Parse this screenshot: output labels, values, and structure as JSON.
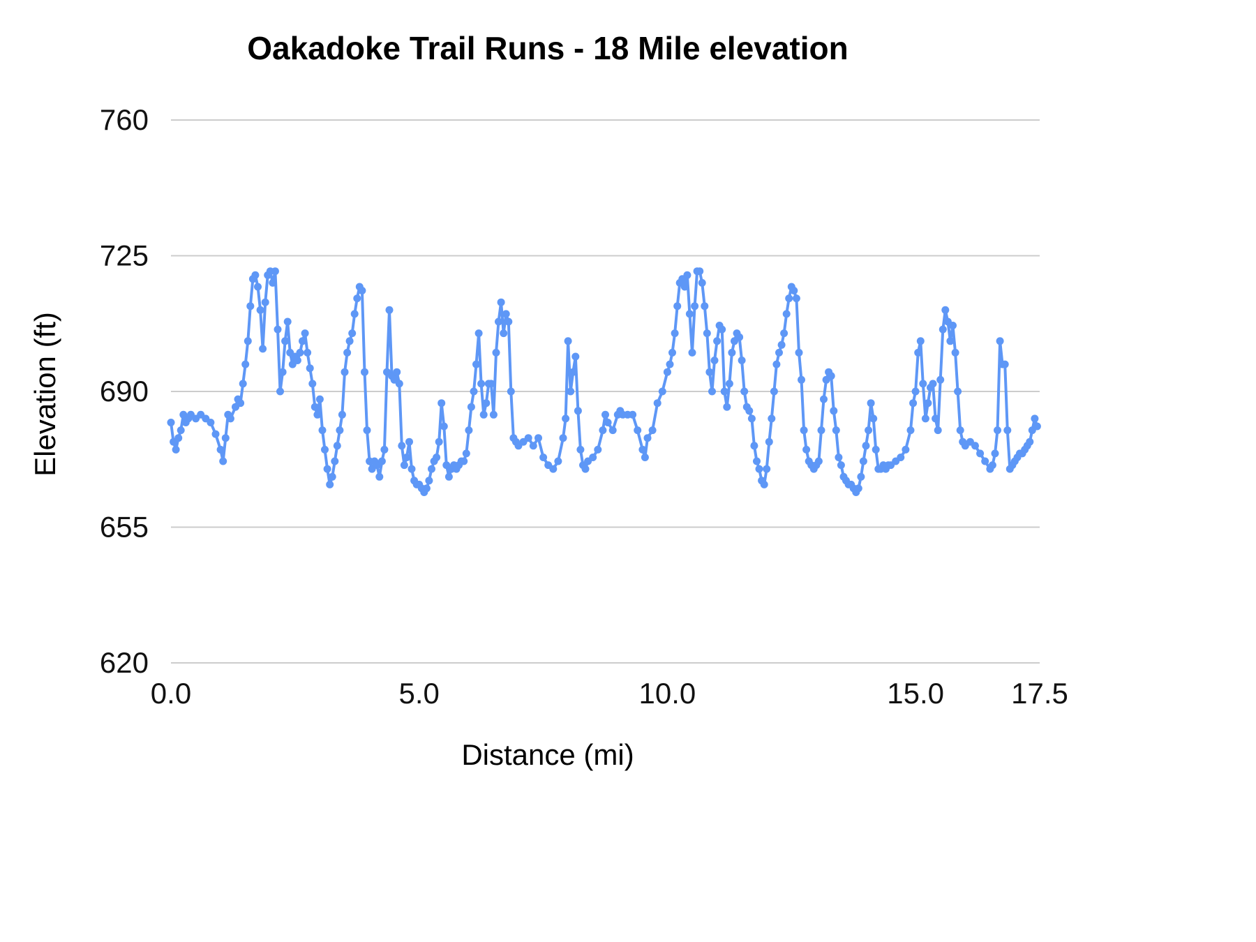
{
  "page": {
    "background": "#ffffff"
  },
  "chart_data": {
    "type": "line",
    "title": "Oakadoke Trail Runs - 18 Mile elevation",
    "xlabel": "Distance (mi)",
    "ylabel": "Elevation (ft)",
    "xlim": [
      0,
      17.5
    ],
    "ylim": [
      620,
      760
    ],
    "xtick_values": [
      0,
      5,
      10,
      15,
      17.5
    ],
    "xtick_labels": [
      "0.0",
      "5.0",
      "10.0",
      "15.0",
      "17.5"
    ],
    "ytick_values": [
      620,
      655,
      690,
      725,
      760
    ],
    "ytick_labels": [
      "620",
      "655",
      "690",
      "725",
      "760"
    ],
    "grid": "horizontal",
    "legend": "none",
    "series_name": "elevation",
    "line_color": "#5e97f6",
    "point_color": "#5e97f6",
    "grid_color": "#cccccc",
    "tick_text_color": "#111111",
    "points": [
      [
        0.0,
        682
      ],
      [
        0.05,
        677
      ],
      [
        0.1,
        675
      ],
      [
        0.15,
        678
      ],
      [
        0.2,
        680
      ],
      [
        0.25,
        684
      ],
      [
        0.3,
        682
      ],
      [
        0.35,
        683
      ],
      [
        0.4,
        684
      ],
      [
        0.5,
        683
      ],
      [
        0.6,
        684
      ],
      [
        0.7,
        683
      ],
      [
        0.8,
        682
      ],
      [
        0.9,
        679
      ],
      [
        1.0,
        675
      ],
      [
        1.05,
        672
      ],
      [
        1.1,
        678
      ],
      [
        1.15,
        684
      ],
      [
        1.2,
        683
      ],
      [
        1.3,
        686
      ],
      [
        1.35,
        688
      ],
      [
        1.4,
        687
      ],
      [
        1.45,
        692
      ],
      [
        1.5,
        697
      ],
      [
        1.55,
        703
      ],
      [
        1.6,
        712
      ],
      [
        1.65,
        719
      ],
      [
        1.7,
        720
      ],
      [
        1.75,
        717
      ],
      [
        1.8,
        711
      ],
      [
        1.85,
        701
      ],
      [
        1.9,
        713
      ],
      [
        1.95,
        720
      ],
      [
        2.0,
        721
      ],
      [
        2.05,
        718
      ],
      [
        2.1,
        721
      ],
      [
        2.15,
        706
      ],
      [
        2.2,
        690
      ],
      [
        2.25,
        695
      ],
      [
        2.3,
        703
      ],
      [
        2.35,
        708
      ],
      [
        2.4,
        700
      ],
      [
        2.45,
        697
      ],
      [
        2.5,
        699
      ],
      [
        2.55,
        698
      ],
      [
        2.6,
        700
      ],
      [
        2.65,
        703
      ],
      [
        2.7,
        705
      ],
      [
        2.75,
        700
      ],
      [
        2.8,
        696
      ],
      [
        2.85,
        692
      ],
      [
        2.9,
        686
      ],
      [
        2.95,
        684
      ],
      [
        3.0,
        688
      ],
      [
        3.05,
        680
      ],
      [
        3.1,
        675
      ],
      [
        3.15,
        670
      ],
      [
        3.2,
        666
      ],
      [
        3.25,
        668
      ],
      [
        3.3,
        672
      ],
      [
        3.35,
        676
      ],
      [
        3.4,
        680
      ],
      [
        3.45,
        684
      ],
      [
        3.5,
        695
      ],
      [
        3.55,
        700
      ],
      [
        3.6,
        703
      ],
      [
        3.65,
        705
      ],
      [
        3.7,
        710
      ],
      [
        3.75,
        714
      ],
      [
        3.8,
        717
      ],
      [
        3.85,
        716
      ],
      [
        3.9,
        695
      ],
      [
        3.95,
        680
      ],
      [
        4.0,
        672
      ],
      [
        4.05,
        670
      ],
      [
        4.1,
        672
      ],
      [
        4.15,
        671
      ],
      [
        4.2,
        668
      ],
      [
        4.25,
        672
      ],
      [
        4.3,
        675
      ],
      [
        4.35,
        695
      ],
      [
        4.4,
        711
      ],
      [
        4.45,
        694
      ],
      [
        4.5,
        693
      ],
      [
        4.55,
        695
      ],
      [
        4.6,
        692
      ],
      [
        4.65,
        676
      ],
      [
        4.7,
        671
      ],
      [
        4.75,
        673
      ],
      [
        4.8,
        677
      ],
      [
        4.85,
        670
      ],
      [
        4.9,
        667
      ],
      [
        4.95,
        666
      ],
      [
        5.0,
        666
      ],
      [
        5.05,
        665
      ],
      [
        5.1,
        664
      ],
      [
        5.15,
        665
      ],
      [
        5.2,
        667
      ],
      [
        5.25,
        670
      ],
      [
        5.3,
        672
      ],
      [
        5.35,
        673
      ],
      [
        5.4,
        677
      ],
      [
        5.45,
        687
      ],
      [
        5.5,
        681
      ],
      [
        5.55,
        671
      ],
      [
        5.6,
        668
      ],
      [
        5.65,
        670
      ],
      [
        5.7,
        671
      ],
      [
        5.75,
        670
      ],
      [
        5.8,
        671
      ],
      [
        5.85,
        672
      ],
      [
        5.9,
        672
      ],
      [
        5.95,
        674
      ],
      [
        6.0,
        680
      ],
      [
        6.05,
        686
      ],
      [
        6.1,
        690
      ],
      [
        6.15,
        697
      ],
      [
        6.2,
        705
      ],
      [
        6.25,
        692
      ],
      [
        6.3,
        684
      ],
      [
        6.35,
        687
      ],
      [
        6.4,
        692
      ],
      [
        6.45,
        692
      ],
      [
        6.5,
        684
      ],
      [
        6.55,
        700
      ],
      [
        6.6,
        708
      ],
      [
        6.65,
        713
      ],
      [
        6.7,
        705
      ],
      [
        6.75,
        710
      ],
      [
        6.8,
        708
      ],
      [
        6.85,
        690
      ],
      [
        6.9,
        678
      ],
      [
        6.95,
        677
      ],
      [
        7.0,
        676
      ],
      [
        7.1,
        677
      ],
      [
        7.2,
        678
      ],
      [
        7.3,
        676
      ],
      [
        7.4,
        678
      ],
      [
        7.5,
        673
      ],
      [
        7.6,
        671
      ],
      [
        7.7,
        670
      ],
      [
        7.8,
        672
      ],
      [
        7.9,
        678
      ],
      [
        7.95,
        683
      ],
      [
        8.0,
        703
      ],
      [
        8.05,
        690
      ],
      [
        8.1,
        695
      ],
      [
        8.15,
        699
      ],
      [
        8.2,
        685
      ],
      [
        8.25,
        675
      ],
      [
        8.3,
        671
      ],
      [
        8.35,
        670
      ],
      [
        8.4,
        672
      ],
      [
        8.5,
        673
      ],
      [
        8.6,
        675
      ],
      [
        8.7,
        680
      ],
      [
        8.75,
        684
      ],
      [
        8.8,
        682
      ],
      [
        8.9,
        680
      ],
      [
        9.0,
        684
      ],
      [
        9.05,
        685
      ],
      [
        9.1,
        684
      ],
      [
        9.2,
        684
      ],
      [
        9.3,
        684
      ],
      [
        9.4,
        680
      ],
      [
        9.5,
        675
      ],
      [
        9.55,
        673
      ],
      [
        9.6,
        678
      ],
      [
        9.7,
        680
      ],
      [
        9.8,
        687
      ],
      [
        9.9,
        690
      ],
      [
        10.0,
        695
      ],
      [
        10.05,
        697
      ],
      [
        10.1,
        700
      ],
      [
        10.15,
        705
      ],
      [
        10.2,
        712
      ],
      [
        10.25,
        718
      ],
      [
        10.3,
        719
      ],
      [
        10.35,
        717
      ],
      [
        10.4,
        720
      ],
      [
        10.45,
        710
      ],
      [
        10.5,
        700
      ],
      [
        10.55,
        712
      ],
      [
        10.6,
        721
      ],
      [
        10.65,
        721
      ],
      [
        10.7,
        718
      ],
      [
        10.75,
        712
      ],
      [
        10.8,
        705
      ],
      [
        10.85,
        695
      ],
      [
        10.9,
        690
      ],
      [
        10.95,
        698
      ],
      [
        11.0,
        703
      ],
      [
        11.05,
        707
      ],
      [
        11.1,
        706
      ],
      [
        11.15,
        690
      ],
      [
        11.2,
        686
      ],
      [
        11.25,
        692
      ],
      [
        11.3,
        700
      ],
      [
        11.35,
        703
      ],
      [
        11.4,
        705
      ],
      [
        11.45,
        704
      ],
      [
        11.5,
        698
      ],
      [
        11.55,
        690
      ],
      [
        11.6,
        686
      ],
      [
        11.65,
        685
      ],
      [
        11.7,
        683
      ],
      [
        11.75,
        676
      ],
      [
        11.8,
        672
      ],
      [
        11.85,
        670
      ],
      [
        11.9,
        667
      ],
      [
        11.95,
        666
      ],
      [
        12.0,
        670
      ],
      [
        12.05,
        677
      ],
      [
        12.1,
        683
      ],
      [
        12.15,
        690
      ],
      [
        12.2,
        697
      ],
      [
        12.25,
        700
      ],
      [
        12.3,
        702
      ],
      [
        12.35,
        705
      ],
      [
        12.4,
        710
      ],
      [
        12.45,
        714
      ],
      [
        12.5,
        717
      ],
      [
        12.55,
        716
      ],
      [
        12.6,
        714
      ],
      [
        12.65,
        700
      ],
      [
        12.7,
        693
      ],
      [
        12.75,
        680
      ],
      [
        12.8,
        675
      ],
      [
        12.85,
        672
      ],
      [
        12.9,
        671
      ],
      [
        12.95,
        670
      ],
      [
        13.0,
        671
      ],
      [
        13.05,
        672
      ],
      [
        13.1,
        680
      ],
      [
        13.15,
        688
      ],
      [
        13.2,
        693
      ],
      [
        13.25,
        695
      ],
      [
        13.3,
        694
      ],
      [
        13.35,
        685
      ],
      [
        13.4,
        680
      ],
      [
        13.45,
        673
      ],
      [
        13.5,
        671
      ],
      [
        13.55,
        668
      ],
      [
        13.6,
        667
      ],
      [
        13.65,
        666
      ],
      [
        13.7,
        666
      ],
      [
        13.75,
        665
      ],
      [
        13.8,
        664
      ],
      [
        13.85,
        665
      ],
      [
        13.9,
        668
      ],
      [
        13.95,
        672
      ],
      [
        14.0,
        676
      ],
      [
        14.05,
        680
      ],
      [
        14.1,
        687
      ],
      [
        14.15,
        683
      ],
      [
        14.2,
        675
      ],
      [
        14.25,
        670
      ],
      [
        14.3,
        670
      ],
      [
        14.35,
        671
      ],
      [
        14.4,
        670
      ],
      [
        14.45,
        671
      ],
      [
        14.5,
        671
      ],
      [
        14.6,
        672
      ],
      [
        14.7,
        673
      ],
      [
        14.8,
        675
      ],
      [
        14.9,
        680
      ],
      [
        14.95,
        687
      ],
      [
        15.0,
        690
      ],
      [
        15.05,
        700
      ],
      [
        15.1,
        703
      ],
      [
        15.15,
        692
      ],
      [
        15.2,
        683
      ],
      [
        15.25,
        687
      ],
      [
        15.3,
        691
      ],
      [
        15.35,
        692
      ],
      [
        15.4,
        683
      ],
      [
        15.45,
        680
      ],
      [
        15.5,
        693
      ],
      [
        15.55,
        706
      ],
      [
        15.6,
        711
      ],
      [
        15.65,
        708
      ],
      [
        15.7,
        703
      ],
      [
        15.75,
        707
      ],
      [
        15.8,
        700
      ],
      [
        15.85,
        690
      ],
      [
        15.9,
        680
      ],
      [
        15.95,
        677
      ],
      [
        16.0,
        676
      ],
      [
        16.1,
        677
      ],
      [
        16.2,
        676
      ],
      [
        16.3,
        674
      ],
      [
        16.4,
        672
      ],
      [
        16.5,
        670
      ],
      [
        16.55,
        671
      ],
      [
        16.6,
        674
      ],
      [
        16.65,
        680
      ],
      [
        16.7,
        703
      ],
      [
        16.75,
        697
      ],
      [
        16.8,
        697
      ],
      [
        16.85,
        680
      ],
      [
        16.9,
        670
      ],
      [
        16.95,
        671
      ],
      [
        17.0,
        672
      ],
      [
        17.05,
        673
      ],
      [
        17.1,
        674
      ],
      [
        17.15,
        674
      ],
      [
        17.2,
        675
      ],
      [
        17.25,
        676
      ],
      [
        17.3,
        677
      ],
      [
        17.35,
        680
      ],
      [
        17.4,
        683
      ],
      [
        17.45,
        681
      ]
    ]
  }
}
